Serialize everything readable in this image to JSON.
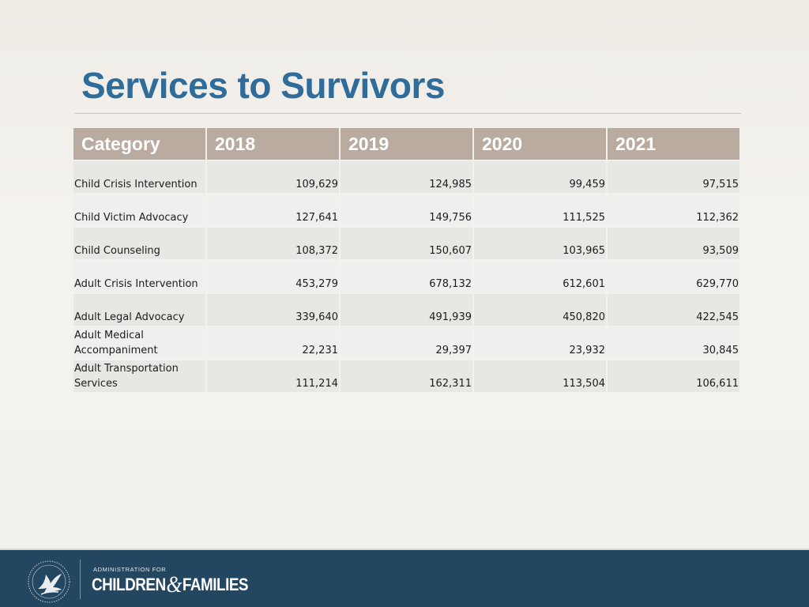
{
  "slide": {
    "title": "Services to Survivors"
  },
  "table": {
    "headers": [
      "Category",
      "2018",
      "2019",
      "2020",
      "2021"
    ],
    "rows": [
      {
        "category": "Child Crisis Intervention",
        "values": [
          "109,629",
          "124,985",
          "99,459",
          "97,515"
        ]
      },
      {
        "category": "Child Victim Advocacy",
        "values": [
          "127,641",
          "149,756",
          "111,525",
          "112,362"
        ]
      },
      {
        "category": "Child Counseling",
        "values": [
          "108,372",
          "150,607",
          "103,965",
          "93,509"
        ]
      },
      {
        "category": "Adult Crisis Intervention",
        "values": [
          "453,279",
          "678,132",
          "612,601",
          "629,770"
        ]
      },
      {
        "category": "Adult Legal Advocacy",
        "values": [
          "339,640",
          "491,939",
          "450,820",
          "422,545"
        ]
      },
      {
        "category": "Adult Medical Accompaniment",
        "values": [
          "22,231",
          "29,397",
          "23,932",
          "30,845"
        ]
      },
      {
        "category": "Adult Transportation Services",
        "values": [
          "111,214",
          "162,311",
          "113,504",
          "106,611"
        ]
      }
    ]
  },
  "footer": {
    "agency_line1": "ADMINISTRATION FOR",
    "agency_part1": "CHILDREN",
    "agency_amp": "&",
    "agency_part2": "FAMILIES",
    "seal_icon": "hhs-eagle-seal-icon",
    "colors": {
      "footer_bg": "#244761",
      "title": "#2f6c99",
      "header_bg": "#b9ab9f"
    }
  }
}
